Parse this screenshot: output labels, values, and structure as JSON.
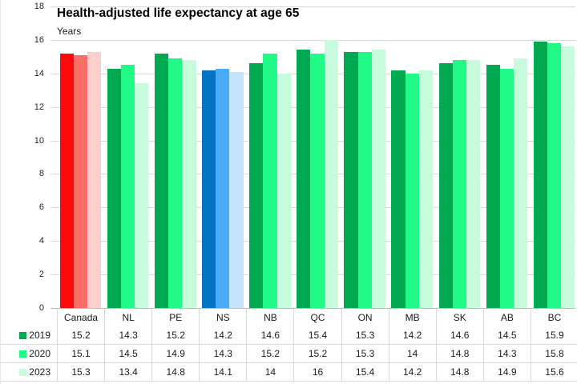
{
  "chart_data": {
    "type": "bar",
    "title": "Health-adjusted life expectancy at age 65",
    "ylabel": "Years",
    "ylim": [
      0,
      18
    ],
    "ytick_interval": 2,
    "grid": true,
    "legend_position": "table-row-labels-left",
    "categories": [
      "Canada",
      "NL",
      "PE",
      "NS",
      "NB",
      "QC",
      "ON",
      "MB",
      "SK",
      "AB",
      "BC"
    ],
    "series": [
      {
        "name": "2019",
        "values": [
          15.2,
          14.3,
          15.2,
          14.2,
          14.6,
          15.4,
          15.3,
          14.2,
          14.6,
          14.5,
          15.9
        ]
      },
      {
        "name": "2020",
        "values": [
          15.1,
          14.5,
          14.9,
          14.3,
          15.2,
          15.2,
          15.3,
          14,
          14.8,
          14.3,
          15.8
        ]
      },
      {
        "name": "2023",
        "values": [
          15.3,
          13.4,
          14.8,
          14.1,
          14,
          16,
          15.4,
          14.2,
          14.8,
          14.9,
          15.6
        ]
      }
    ],
    "colors": {
      "series_default": [
        "#00a94f",
        "#22fa87",
        "#c6fcdb"
      ],
      "category_overrides": {
        "Canada": [
          "#fa0a0a",
          "#fc6d68",
          "#fccfcc"
        ],
        "NS": [
          "#0473c4",
          "#48abfa",
          "#c4e2fa"
        ]
      },
      "legend_swatches": [
        "#00a94f",
        "#22fa87",
        "#c6fcdb"
      ],
      "gridline": "#d9d9d9",
      "axis_line": "#bfbfbf"
    }
  }
}
